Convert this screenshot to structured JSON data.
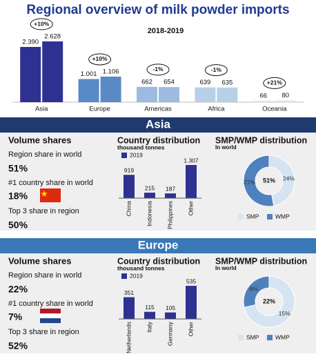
{
  "title": "Regional overview of milk powder imports",
  "chart_data": [
    {
      "type": "bar",
      "subtitle": "2018-2019",
      "categories": [
        "Asia",
        "Europe",
        "Americas",
        "Africa",
        "Oceania"
      ],
      "colors": [
        "#2e3192",
        "#5a8ac6",
        "#9dbbe0",
        "#b8cfe8",
        "#dde8f3"
      ],
      "series": [
        {
          "values": [
            2390,
            1001,
            662,
            639,
            66
          ],
          "value_labels": [
            "2.390",
            "1.001",
            "662",
            "639",
            "66"
          ]
        },
        {
          "values": [
            2628,
            1106,
            654,
            635,
            80
          ],
          "value_labels": [
            "2.628",
            "1.106",
            "654",
            "635",
            "80"
          ]
        }
      ],
      "annotations": [
        "+10%",
        "+10%",
        "-1%",
        "-1%",
        "+21%"
      ]
    },
    {
      "type": "bar",
      "title": "Country distribution",
      "subtitle": "thousand tonnes",
      "categories": [
        "China",
        "Indonesia",
        "Philippines",
        "Other"
      ],
      "series": [
        {
          "name": "2019",
          "color": "#2e3192",
          "values": [
            919,
            215,
            187,
            1307
          ],
          "value_labels": [
            "919",
            "215",
            "187",
            "1.307"
          ]
        }
      ]
    },
    {
      "type": "pie",
      "title": "SMP/WMP distribution",
      "subtitle": "In world",
      "categories": [
        "SMP",
        "WMP"
      ],
      "colors": [
        "#d6e4f2",
        "#4f81bd"
      ],
      "values": [
        24,
        27
      ],
      "value_labels": [
        "24%",
        "27%"
      ]
    },
    {
      "type": "bar",
      "title": "Country distribution",
      "subtitle": "thousand tonnes",
      "categories": [
        "Netherlands",
        "Italy",
        "Germany",
        "Other"
      ],
      "series": [
        {
          "name": "2019",
          "color": "#2e3192",
          "values": [
            351,
            115,
            105,
            535
          ],
          "value_labels": [
            "351",
            "115",
            "105",
            "535"
          ]
        }
      ]
    },
    {
      "type": "pie",
      "title": "SMP/WMP distribution",
      "subtitle": "In world",
      "categories": [
        "SMP",
        "WMP"
      ],
      "colors": [
        "#d6e4f2",
        "#4f81bd"
      ],
      "values": [
        15,
        6
      ],
      "value_labels": [
        "15%",
        "6%"
      ]
    }
  ],
  "panels": [
    {
      "header": "Asia",
      "volume_title": "Volume shares",
      "stats": [
        {
          "label": "Region share in world",
          "value": "51%"
        },
        {
          "label": "#1 country share in world",
          "value": "18%"
        },
        {
          "label": "Top 3 share in region",
          "value": "50%"
        }
      ]
    },
    {
      "header": "Europe",
      "volume_title": "Volume shares",
      "stats": [
        {
          "label": "Region share in world",
          "value": "22%"
        },
        {
          "label": "#1 country share in world",
          "value": "7%"
        },
        {
          "label": "Top 3 share in region",
          "value": "52%"
        }
      ]
    }
  ]
}
